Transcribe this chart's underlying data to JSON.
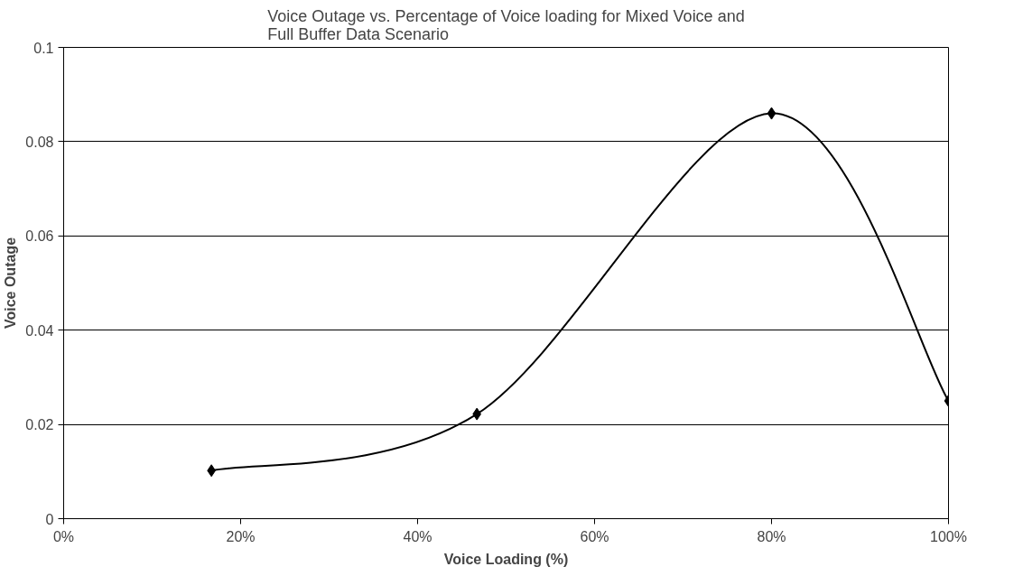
{
  "chart_data": {
    "type": "line",
    "title": "Voice Outage vs. Percentage of Voice loading for Mixed Voice and Full Buffer Data Scenario",
    "xlabel": "Voice Loading (%)",
    "ylabel": "Voice Outage",
    "x": [
      16.7,
      46.7,
      80,
      100
    ],
    "series": [
      {
        "color": "#000000",
        "values": [
          0.0102,
          0.0222,
          0.086,
          0.025
        ]
      }
    ],
    "xlim": [
      0,
      100
    ],
    "xticks": [
      {
        "value": 0,
        "label": "0%"
      },
      {
        "value": 20,
        "label": "20%"
      },
      {
        "value": 40,
        "label": "40%"
      },
      {
        "value": 60,
        "label": "60%"
      },
      {
        "value": 80,
        "label": "80%"
      },
      {
        "value": 100,
        "label": "100%"
      }
    ],
    "ylim": [
      0,
      0.1
    ],
    "yticks": [
      0,
      0.02,
      0.04,
      0.06,
      0.08,
      0.1
    ],
    "grid": "y",
    "marker": "diamond",
    "line_style": "solid"
  }
}
